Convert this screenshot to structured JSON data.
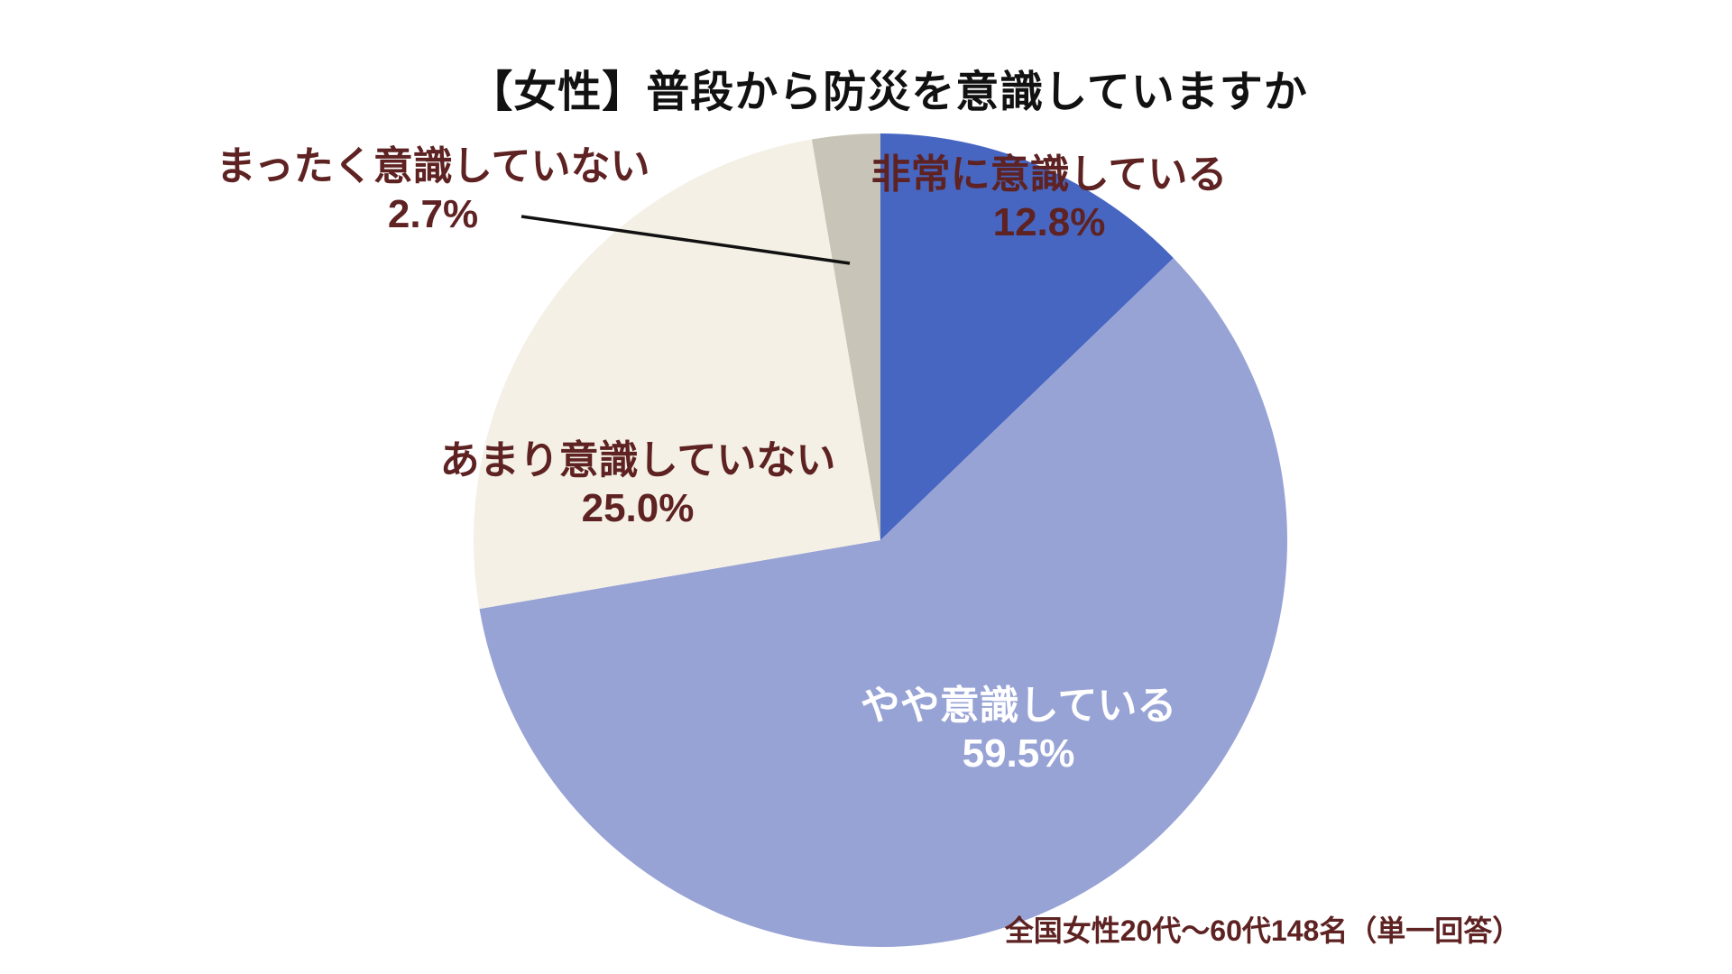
{
  "title": "【女性】普段から防災を意識していますか",
  "footer": "全国女性20代～60代148名（単一回答）",
  "chart_data": {
    "type": "pie",
    "title": "【女性】普段から防災を意識していますか",
    "categories": [
      "非常に意識している",
      "やや意識している",
      "あまり意識していない",
      "まったく意識していない"
    ],
    "values": [
      12.8,
      59.5,
      25.0,
      2.7
    ],
    "value_labels": [
      "12.8%",
      "59.5%",
      "25.0%",
      "2.7%"
    ],
    "colors": [
      "#4766C1",
      "#98A3D5",
      "#F4F0E5",
      "#C8C5B8"
    ],
    "label_text_colors": [
      "#5E2222",
      "#FFFFFF",
      "#5E2222",
      "#5E2222"
    ],
    "start_angle_deg": 0,
    "direction": "clockwise",
    "legend_position": "none",
    "source_note": "全国女性20代～60代148名（単一回答）"
  }
}
